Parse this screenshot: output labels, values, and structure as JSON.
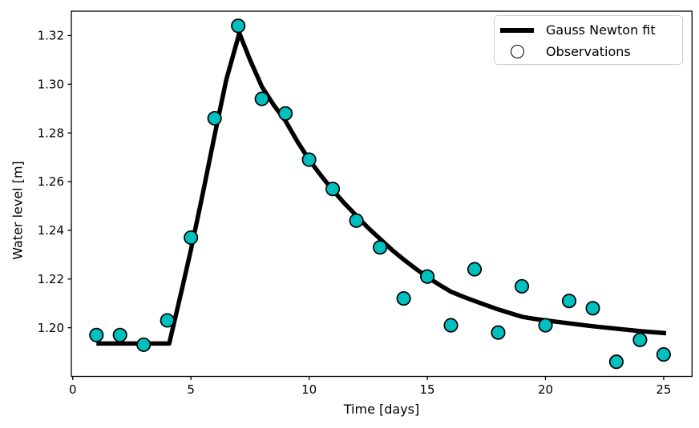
{
  "figure": {
    "background": "#ffffff",
    "accent_marker_color": "#00bfbf",
    "line_color": "#000000"
  },
  "chart_data": {
    "type": "line+scatter",
    "title": "",
    "xlabel": "Time [days]",
    "ylabel": "Water level [m]",
    "xlim": [
      -0.06,
      26.2
    ],
    "ylim": [
      1.18,
      1.33
    ],
    "grid": false,
    "xticks": [
      0,
      5,
      10,
      15,
      20,
      25
    ],
    "xtick_labels": [
      "0",
      "5",
      "10",
      "15",
      "20",
      "25"
    ],
    "yticks": [
      1.2,
      1.22,
      1.24,
      1.26,
      1.28,
      1.3,
      1.32
    ],
    "ytick_labels": [
      "1.20",
      "1.22",
      "1.24",
      "1.26",
      "1.28",
      "1.30",
      "1.32"
    ],
    "legend": {
      "position": "upper right",
      "entries": [
        {
          "label": "Gauss Newton fit",
          "type": "line",
          "color": "#000000"
        },
        {
          "label": "Observations",
          "type": "marker",
          "color": "#00bfbf",
          "edgecolor": "#000000"
        }
      ]
    },
    "series": [
      {
        "name": "Gauss Newton fit",
        "type": "line",
        "color": "#000000",
        "linewidth": 5.5,
        "x": [
          1.0,
          4.08,
          4.6,
          5.0,
          5.5,
          6.0,
          6.5,
          7.05,
          7.5,
          8.0,
          8.5,
          9.0,
          9.5,
          10.0,
          10.5,
          11.0,
          11.5,
          12.0,
          12.5,
          13.0,
          13.5,
          14.0,
          14.5,
          15.0,
          15.5,
          16.0,
          16.5,
          17.0,
          17.5,
          18.0,
          18.5,
          19.0,
          19.5,
          20.0,
          20.5,
          21.0,
          21.5,
          22.0,
          22.5,
          23.0,
          23.5,
          24.0,
          24.5,
          25.0,
          25.1
        ],
        "y": [
          1.1935,
          1.1935,
          1.215,
          1.232,
          1.255,
          1.279,
          1.302,
          1.321,
          1.31,
          1.299,
          1.2915,
          1.285,
          1.2765,
          1.269,
          1.2625,
          1.2565,
          1.251,
          1.246,
          1.241,
          1.2365,
          1.232,
          1.228,
          1.2243,
          1.2208,
          1.2177,
          1.2148,
          1.2128,
          1.211,
          1.2092,
          1.2075,
          1.206,
          1.2045,
          1.2037,
          1.203,
          1.2024,
          1.2018,
          1.2012,
          1.2006,
          1.2001,
          1.1996,
          1.1991,
          1.1986,
          1.1982,
          1.1978,
          1.1977
        ]
      },
      {
        "name": "Observations",
        "type": "scatter",
        "color": "#00bfbf",
        "edgecolor": "#000000",
        "markersize": 8.2,
        "x": [
          1,
          2,
          3,
          4,
          5,
          6,
          7,
          8,
          9,
          10,
          11,
          12,
          13,
          14,
          15,
          16,
          17,
          18,
          19,
          20,
          21,
          22,
          23,
          24,
          25
        ],
        "y": [
          1.197,
          1.197,
          1.193,
          1.203,
          1.237,
          1.286,
          1.324,
          1.294,
          1.288,
          1.269,
          1.257,
          1.244,
          1.233,
          1.212,
          1.221,
          1.201,
          1.224,
          1.198,
          1.217,
          1.201,
          1.211,
          1.208,
          1.186,
          1.195,
          1.189
        ]
      }
    ]
  }
}
